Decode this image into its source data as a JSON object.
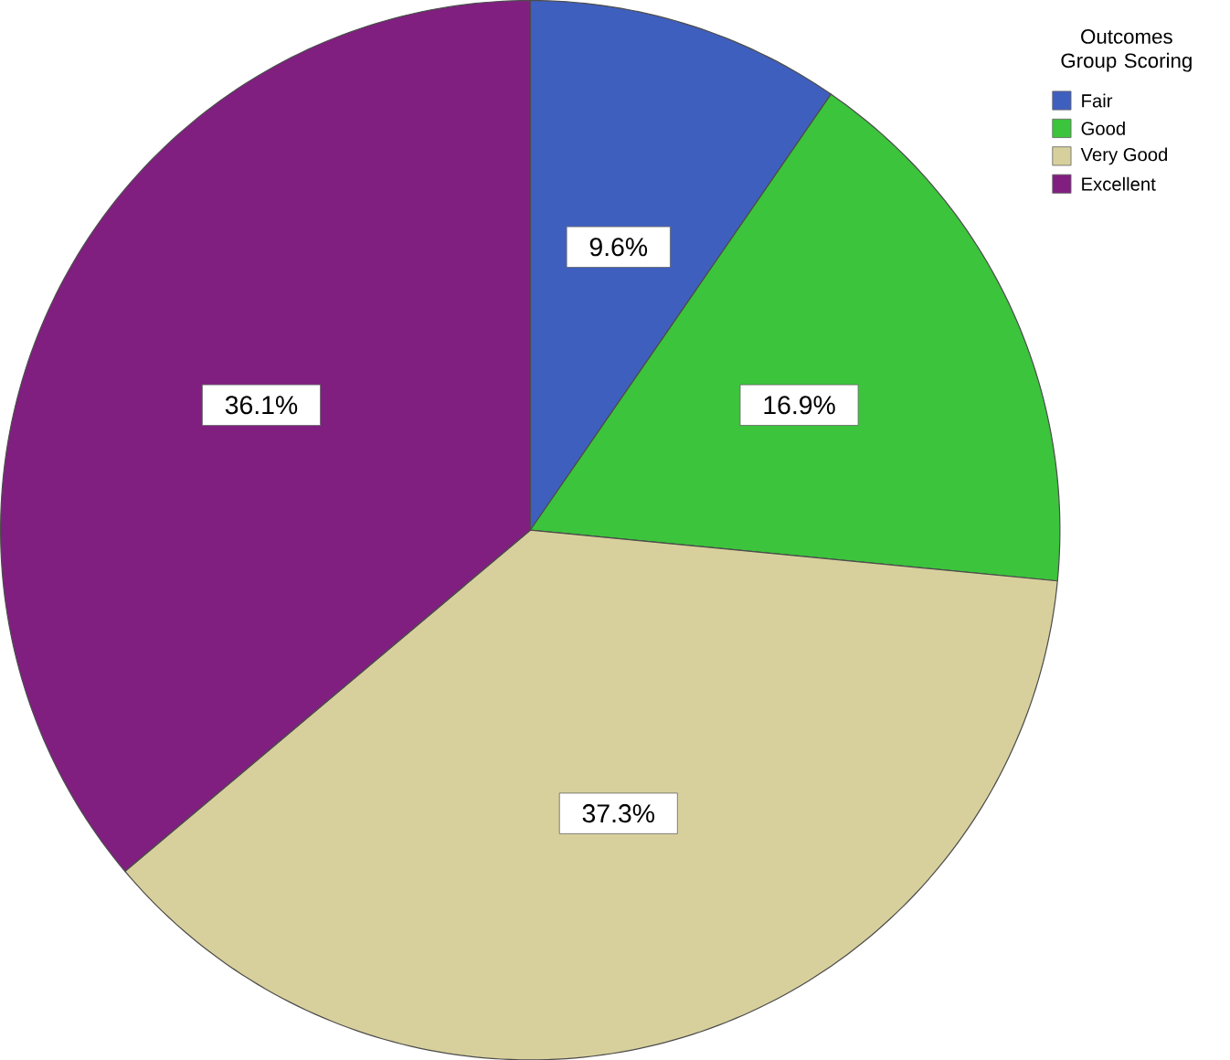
{
  "chart_data": {
    "type": "pie",
    "legend_title": "Outcomes Group Scoring",
    "categories": [
      "Fair",
      "Good",
      "Very Good",
      "Excellent"
    ],
    "values": [
      9.6,
      16.9,
      37.3,
      36.1
    ],
    "value_labels": [
      "9.6%",
      "16.9%",
      "37.3%",
      "36.1%"
    ],
    "colors": [
      "#3f5fbf",
      "#3cc43c",
      "#d8d09c",
      "#801f80"
    ],
    "legend": "top right"
  }
}
